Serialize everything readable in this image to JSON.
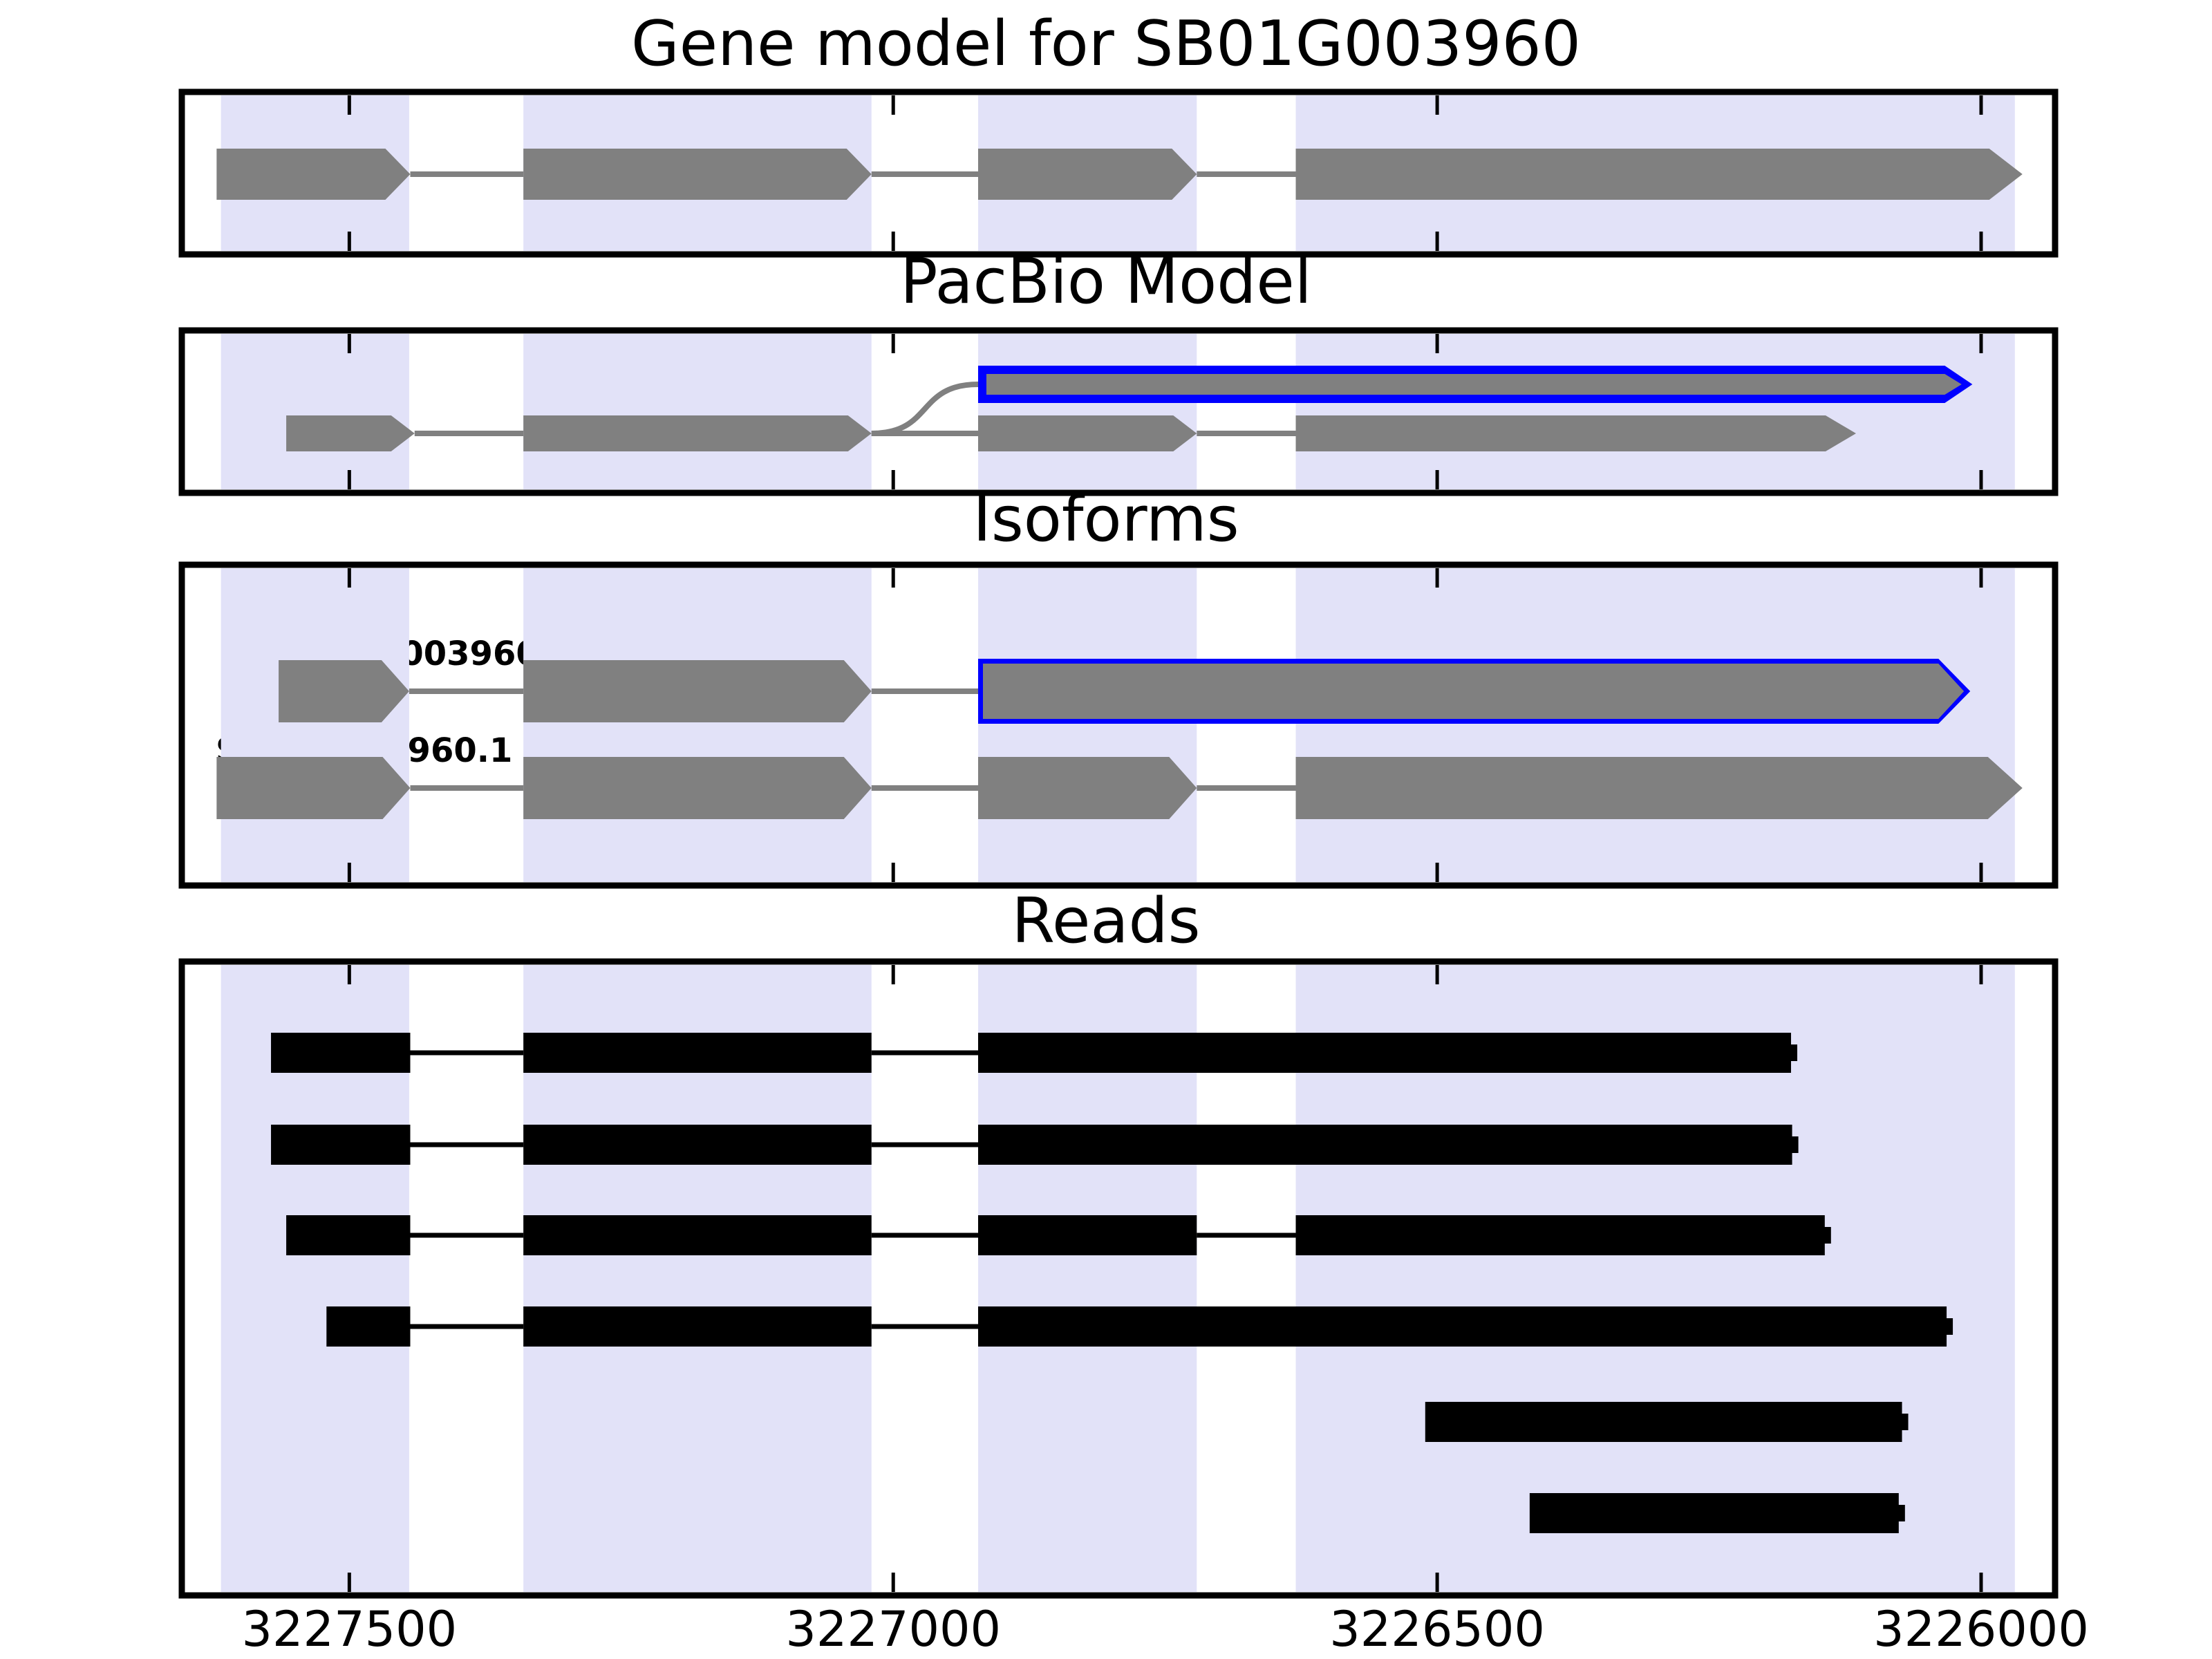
{
  "colors": {
    "exon_fill": "#808080",
    "intron_line": "#808080",
    "highlight_band": "#e2e2f8",
    "novel_outline": "#0000ff",
    "read_fill": "#000000",
    "panel_border": "#000000",
    "background": "#ffffff",
    "text": "#000000"
  },
  "chart_data": {
    "type": "gene-model-track-figure",
    "gene_id": "SB01G003960",
    "x_axis": {
      "tick_positions": [
        3227500,
        3227000,
        3226500,
        3226000
      ],
      "tick_labels": [
        "3227500",
        "3227000",
        "3226500",
        "3226000"
      ],
      "domain_left_bp": 3227654,
      "domain_right_bp": 3225932,
      "orientation": "decreasing-left-to-right",
      "grid": false
    },
    "highlight_bands_bp": [
      [
        3227618,
        3227445
      ],
      [
        3227340,
        3227020
      ],
      [
        3226922,
        3226721
      ],
      [
        3226630,
        3225969
      ]
    ],
    "tracks": {
      "gene_model": {
        "title": "Gene model for SB01G003960",
        "strand_arrow": "right",
        "exons_bp": [
          [
            3227622,
            3227444
          ],
          [
            3227340,
            3227020
          ],
          [
            3226922,
            3226721
          ],
          [
            3226630,
            3225962
          ]
        ]
      },
      "pacbio_model": {
        "title": "PacBio Model",
        "main_exons_bp": [
          [
            3227558,
            3227440
          ],
          [
            3227340,
            3227020
          ],
          [
            3226922,
            3226721
          ],
          [
            3226630,
            3226115
          ]
        ],
        "novel_exon_bp": [
          3226922,
          3226008
        ],
        "novel_exon_outline": "#0000ff",
        "connector_bp": [
          3227020,
          3226922
        ]
      },
      "isoforms": {
        "title": "Isoforms",
        "rows": [
          {
            "label": "SB01G003960_1",
            "exons_bp": [
              [
                3227565,
                3227445
              ],
              [
                3227340,
                3227020
              ],
              [
                3226922,
                3226010
              ]
            ],
            "novel_exon_index": 2
          },
          {
            "label": "SB01G003960.1",
            "exons_bp": [
              [
                3227622,
                3227444
              ],
              [
                3227340,
                3227020
              ],
              [
                3226922,
                3226721
              ],
              [
                3226630,
                3225962
              ]
            ],
            "novel_exon_index": -1
          }
        ]
      },
      "reads": {
        "title": "Reads",
        "reads_bp": [
          [
            [
              3227572,
              3227444
            ],
            [
              3227340,
              3227020
            ],
            [
              3226922,
              3226169
            ]
          ],
          [
            [
              3227572,
              3227444
            ],
            [
              3227340,
              3227020
            ],
            [
              3226922,
              3226168
            ]
          ],
          [
            [
              3227558,
              3227444
            ],
            [
              3227340,
              3227020
            ],
            [
              3226922,
              3226721
            ],
            [
              3226630,
              3226138
            ]
          ],
          [
            [
              3227521,
              3227444
            ],
            [
              3227340,
              3227020
            ],
            [
              3226922,
              3226026
            ]
          ],
          [
            [
              3226511,
              3226067
            ]
          ],
          [
            [
              3226415,
              3226070
            ]
          ]
        ]
      }
    }
  }
}
